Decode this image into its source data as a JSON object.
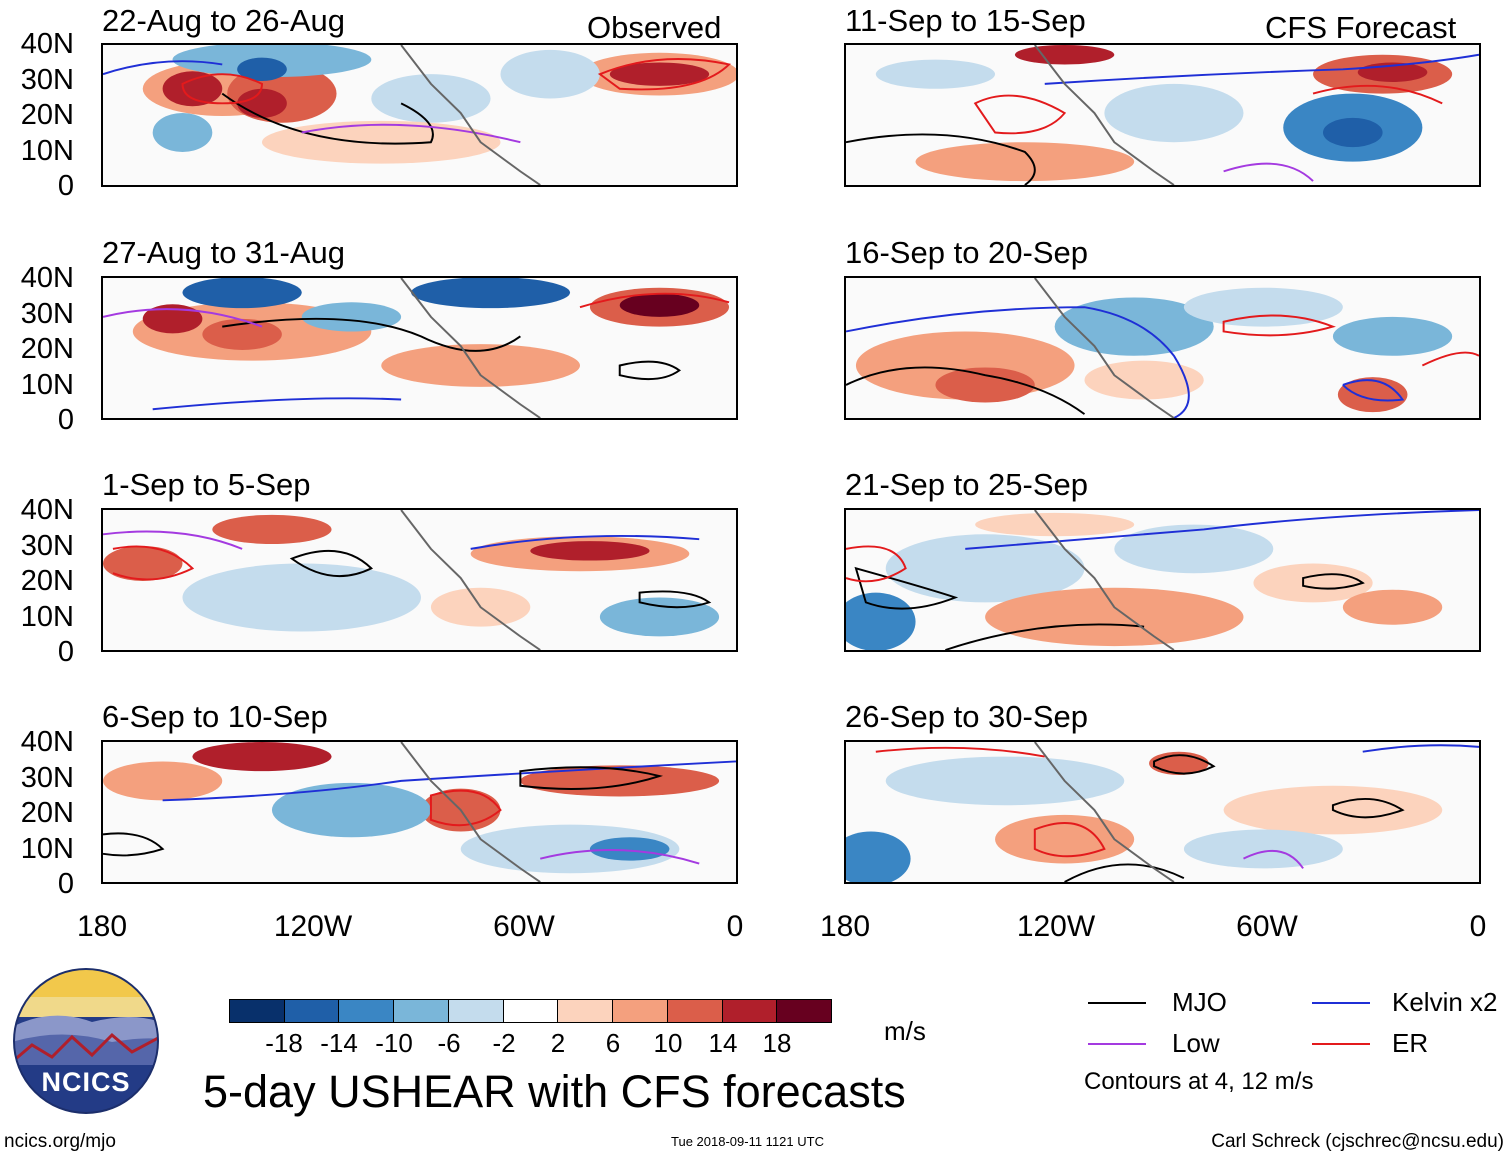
{
  "observed_label": "Observed",
  "forecast_label": "CFS Forecast",
  "panels_left": [
    {
      "title": "22-Aug to 26-Aug"
    },
    {
      "title": "27-Aug to 31-Aug"
    },
    {
      "title": "1-Sep to 5-Sep"
    },
    {
      "title": "6-Sep to 10-Sep"
    }
  ],
  "panels_right": [
    {
      "title": "11-Sep to 15-Sep"
    },
    {
      "title": "16-Sep to 20-Sep"
    },
    {
      "title": "21-Sep to 25-Sep"
    },
    {
      "title": "26-Sep to 30-Sep"
    }
  ],
  "lat_labels": [
    "40N",
    "30N",
    "20N",
    "10N",
    "0"
  ],
  "lon_labels": [
    "180",
    "120W",
    "60W",
    "0"
  ],
  "colorbar": {
    "ticks": [
      "-18",
      "-14",
      "-10",
      "-6",
      "-2",
      "2",
      "6",
      "10",
      "14",
      "18"
    ],
    "colors": [
      "#08306b",
      "#1f5fa8",
      "#3a86c4",
      "#7ab6d9",
      "#c4dced",
      "#ffffff",
      "#fcd3bd",
      "#f4a07e",
      "#db5e4a",
      "#b01f2b",
      "#67001f"
    ],
    "units": "m/s"
  },
  "legend": {
    "items": [
      {
        "label": "MJO",
        "color": "#000000"
      },
      {
        "label": "Kelvin x2",
        "color": "#1f2fd6"
      },
      {
        "label": "Low",
        "color": "#a43ae0"
      },
      {
        "label": "ER",
        "color": "#e31a1c"
      }
    ],
    "contours_note": "Contours at 4, 12 m/s"
  },
  "main_title": "5-day USHEAR with CFS forecasts",
  "logo_text": "NCICS",
  "website": "ncics.org/mjo",
  "timestamp": "Tue 2018-09-11 1121 UTC",
  "author": "Carl Schreck (cjschrec@ncsu.edu)"
}
